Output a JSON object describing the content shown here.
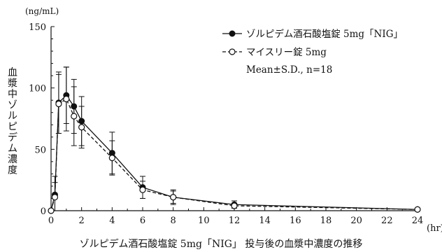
{
  "chart_data": {
    "type": "line",
    "title": "",
    "caption": "ゾルピデム酒石酸塩錠 5mg「NIG」 投与後の血漿中濃度の推移",
    "ylabel": "血漿中ゾルピデム濃度",
    "yunit": "(ng/mL)",
    "xunit": "(hr)",
    "xlim": [
      0,
      24
    ],
    "ylim": [
      0,
      150
    ],
    "x_ticks": [
      "0",
      "2",
      "4",
      "6",
      "8",
      "10",
      "12",
      "14",
      "16",
      "18",
      "20",
      "22",
      "24"
    ],
    "y_ticks": [
      "0",
      "50",
      "100",
      "150"
    ],
    "legend_position": "top-right",
    "stats_note": "Mean±S.D., n=18",
    "x": [
      0,
      0.25,
      0.5,
      1,
      1.5,
      2,
      4,
      6,
      8,
      12,
      24
    ],
    "series": [
      {
        "name": "ゾルピデム酒石酸塩錠 5mg「NIG」",
        "marker": "filled-circle",
        "line_style": "solid",
        "color": "#111111",
        "values": [
          0,
          13,
          88,
          94,
          85,
          73,
          47,
          19,
          11,
          5,
          1
        ],
        "sd": [
          0,
          15,
          25,
          23,
          22,
          20,
          17,
          9,
          6,
          3,
          1
        ]
      },
      {
        "name": "マイスリー錠 5mg",
        "marker": "open-circle",
        "line_style": "dashed",
        "color": "#111111",
        "values": [
          0,
          11,
          87,
          91,
          77,
          68,
          43,
          17,
          11,
          4,
          1
        ],
        "sd": [
          0,
          12,
          24,
          26,
          24,
          17,
          14,
          7,
          5,
          2,
          1
        ]
      }
    ]
  }
}
